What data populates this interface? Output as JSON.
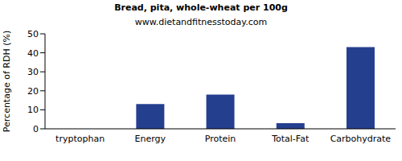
{
  "chart_data": {
    "type": "bar",
    "title": "Bread, pita, whole-wheat per 100g",
    "subtitle": "www.dietandfitnesstoday.com",
    "y_label": "Percentage of RDH (%)",
    "categories": [
      "tryptophan",
      "Energy",
      "Protein",
      "Total-Fat",
      "Carbohydrate"
    ],
    "values": [
      0,
      13,
      18,
      3,
      43
    ],
    "color": "#253f8f",
    "ylim": [
      0,
      50
    ],
    "yticks": [
      0,
      10,
      20,
      30,
      40,
      50
    ],
    "grid": false
  }
}
